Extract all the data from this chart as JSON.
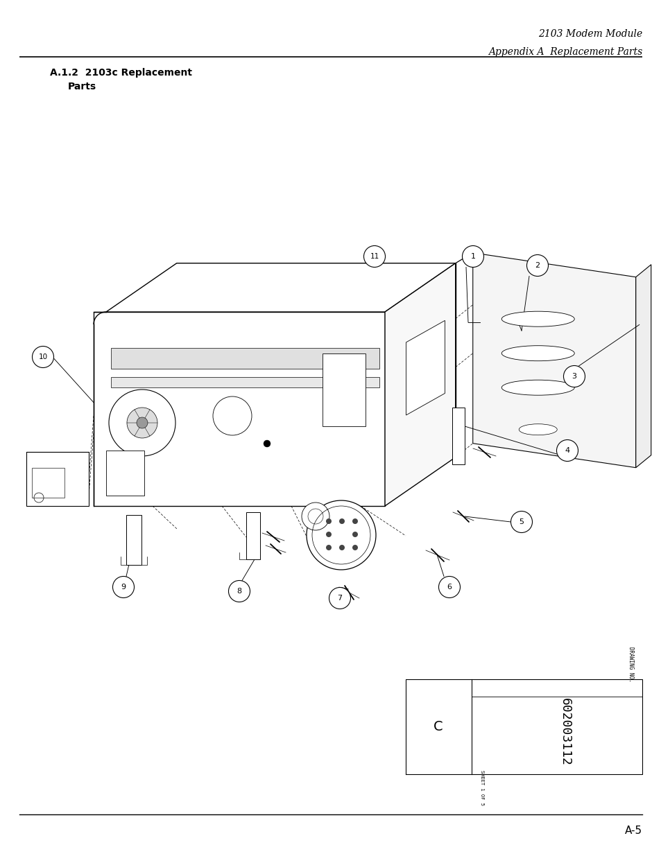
{
  "page_width": 9.54,
  "page_height": 12.35,
  "bg_color": "#ffffff",
  "header_line1": "2103 Modem Module",
  "header_line2": "Appendix A  Replacement Parts",
  "header_fontsize": 10,
  "section_title_line1": "A.1.2  2103c Replacement",
  "section_title_line2": "Parts",
  "section_fontsize": 10,
  "drawing_no_label": "DRAWING NO.",
  "drawing_no_value": "602003112",
  "sheet_label": "SHEET 1 OF 5",
  "rev_label": "C",
  "page_number": "A-5",
  "line_color": "#000000",
  "text_color": "#000000"
}
